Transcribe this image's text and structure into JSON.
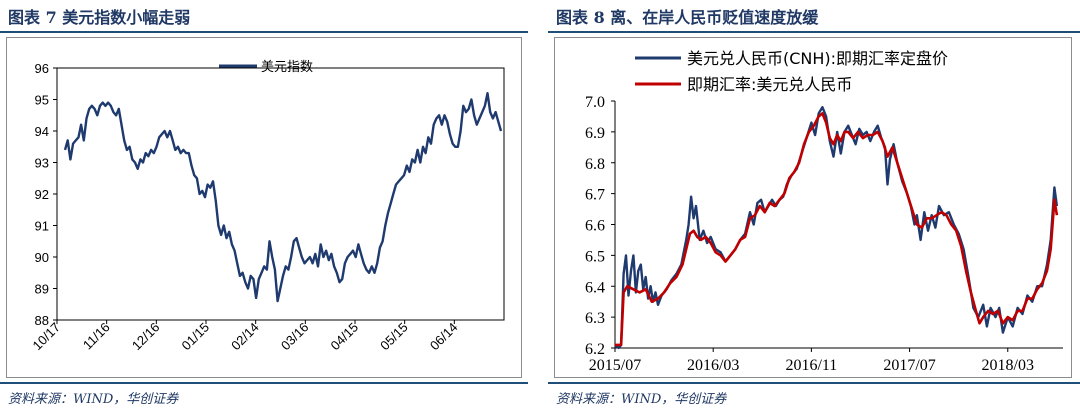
{
  "left": {
    "title": "图表 7   美元指数小幅走弱",
    "source": "资料来源：WIND，华创证券",
    "chart_data": {
      "type": "line",
      "ylim": [
        88,
        96
      ],
      "yticks": [
        96,
        95,
        94,
        93,
        92,
        91,
        90,
        89,
        88
      ],
      "xticks": [
        "10/17",
        "11/16",
        "12/16",
        "01/15",
        "02/14",
        "03/16",
        "04/15",
        "05/15",
        "06/14"
      ],
      "series": [
        {
          "name": "美元指数",
          "color": "#1f3a6e",
          "values": [
            93.4,
            93.7,
            93.1,
            93.6,
            93.7,
            93.8,
            94.2,
            93.7,
            94.4,
            94.7,
            94.8,
            94.7,
            94.5,
            94.8,
            94.9,
            94.8,
            94.9,
            94.8,
            94.6,
            94.5,
            94.7,
            94.2,
            93.7,
            93.4,
            93.5,
            93.1,
            93.0,
            92.8,
            93.1,
            93.0,
            93.3,
            93.2,
            93.4,
            93.3,
            93.5,
            93.8,
            93.9,
            94.0,
            93.8,
            94.0,
            93.7,
            93.4,
            93.5,
            93.3,
            93.4,
            93.3,
            93.3,
            92.9,
            92.6,
            92.5,
            92.0,
            92.1,
            91.9,
            92.3,
            92.2,
            92.4,
            91.8,
            91.0,
            90.7,
            91.0,
            90.6,
            90.8,
            90.4,
            90.2,
            89.8,
            89.4,
            89.5,
            89.2,
            89.0,
            89.4,
            89.3,
            88.7,
            89.3,
            89.5,
            89.7,
            89.6,
            90.5,
            90.0,
            89.6,
            88.6,
            89.0,
            89.4,
            89.7,
            89.6,
            90.0,
            90.5,
            90.6,
            90.3,
            90.0,
            89.8,
            89.9,
            90.0,
            89.8,
            90.1,
            89.7,
            90.4,
            90.0,
            90.2,
            89.9,
            90.1,
            89.7,
            89.5,
            89.2,
            89.3,
            89.8,
            90.0,
            90.1,
            90.2,
            90.0,
            90.4,
            90.1,
            89.8,
            89.6,
            89.5,
            89.7,
            89.5,
            89.8,
            90.3,
            90.5,
            91.0,
            91.4,
            91.7,
            92.0,
            92.3,
            92.4,
            92.5,
            92.6,
            92.9,
            92.7,
            93.1,
            93.0,
            93.4,
            93.0,
            93.5,
            93.3,
            93.8,
            93.6,
            94.2,
            94.4,
            94.5,
            94.2,
            94.5,
            94.3,
            93.9,
            93.6,
            93.5,
            93.5,
            94.0,
            94.8,
            94.6,
            94.7,
            95.0,
            94.5,
            94.2,
            94.4,
            94.6,
            94.8,
            95.2,
            94.6,
            94.4,
            94.6,
            94.3,
            94.0
          ]
        }
      ]
    }
  },
  "right": {
    "title": "图表 8   离、在岸人民币贬值速度放缓",
    "source": "资料来源：WIND，华创证券",
    "chart_data": {
      "type": "line",
      "ylim": [
        6.2,
        7.0
      ],
      "yticks": [
        7.0,
        6.9,
        6.8,
        6.7,
        6.6,
        6.5,
        6.4,
        6.3,
        6.2
      ],
      "xticks": [
        "2015/07",
        "2016/03",
        "2016/11",
        "2017/07",
        "2018/03"
      ],
      "x_months": [
        0,
        8,
        16,
        24,
        32
      ],
      "x_range_months": [
        0,
        36.5
      ],
      "series": [
        {
          "name": "美元兑人民币(CNH):即期汇率定盘价",
          "color": "#1f3a6e",
          "points": [
            [
              0,
              6.21
            ],
            [
              0.3,
              6.2
            ],
            [
              0.5,
              6.21
            ],
            [
              0.7,
              6.44
            ],
            [
              0.9,
              6.5
            ],
            [
              1.1,
              6.37
            ],
            [
              1.3,
              6.45
            ],
            [
              1.5,
              6.5
            ],
            [
              1.7,
              6.38
            ],
            [
              1.9,
              6.45
            ],
            [
              2.1,
              6.47
            ],
            [
              2.3,
              6.39
            ],
            [
              2.5,
              6.43
            ],
            [
              2.7,
              6.36
            ],
            [
              2.9,
              6.4
            ],
            [
              3.1,
              6.35
            ],
            [
              3.3,
              6.38
            ],
            [
              3.5,
              6.34
            ],
            [
              3.8,
              6.37
            ],
            [
              4.2,
              6.39
            ],
            [
              4.6,
              6.42
            ],
            [
              5.0,
              6.44
            ],
            [
              5.4,
              6.47
            ],
            [
              5.8,
              6.55
            ],
            [
              6.0,
              6.6
            ],
            [
              6.2,
              6.69
            ],
            [
              6.4,
              6.62
            ],
            [
              6.6,
              6.66
            ],
            [
              6.9,
              6.55
            ],
            [
              7.2,
              6.58
            ],
            [
              7.5,
              6.54
            ],
            [
              7.8,
              6.56
            ],
            [
              8.2,
              6.52
            ],
            [
              8.6,
              6.51
            ],
            [
              9.0,
              6.48
            ],
            [
              9.4,
              6.5
            ],
            [
              9.8,
              6.52
            ],
            [
              10.2,
              6.55
            ],
            [
              10.6,
              6.57
            ],
            [
              11.0,
              6.64
            ],
            [
              11.3,
              6.6
            ],
            [
              11.6,
              6.67
            ],
            [
              11.9,
              6.68
            ],
            [
              12.2,
              6.64
            ],
            [
              12.5,
              6.66
            ],
            [
              12.8,
              6.68
            ],
            [
              13.1,
              6.66
            ],
            [
              13.4,
              6.68
            ],
            [
              13.7,
              6.69
            ],
            [
              14.0,
              6.73
            ],
            [
              14.4,
              6.76
            ],
            [
              14.8,
              6.78
            ],
            [
              15.2,
              6.83
            ],
            [
              15.6,
              6.88
            ],
            [
              16.0,
              6.93
            ],
            [
              16.3,
              6.89
            ],
            [
              16.6,
              6.96
            ],
            [
              16.9,
              6.98
            ],
            [
              17.2,
              6.95
            ],
            [
              17.5,
              6.87
            ],
            [
              17.8,
              6.82
            ],
            [
              18.1,
              6.9
            ],
            [
              18.4,
              6.83
            ],
            [
              18.7,
              6.9
            ],
            [
              19.0,
              6.92
            ],
            [
              19.3,
              6.89
            ],
            [
              19.6,
              6.86
            ],
            [
              19.9,
              6.91
            ],
            [
              20.2,
              6.89
            ],
            [
              20.5,
              6.9
            ],
            [
              20.8,
              6.87
            ],
            [
              21.1,
              6.9
            ],
            [
              21.4,
              6.92
            ],
            [
              21.7,
              6.88
            ],
            [
              22.0,
              6.85
            ],
            [
              22.2,
              6.73
            ],
            [
              22.4,
              6.81
            ],
            [
              22.7,
              6.86
            ],
            [
              23.0,
              6.8
            ],
            [
              23.4,
              6.74
            ],
            [
              23.8,
              6.7
            ],
            [
              24.1,
              6.66
            ],
            [
              24.4,
              6.6
            ],
            [
              24.6,
              6.63
            ],
            [
              24.9,
              6.55
            ],
            [
              25.2,
              6.64
            ],
            [
              25.5,
              6.58
            ],
            [
              25.8,
              6.63
            ],
            [
              26.1,
              6.59
            ],
            [
              26.4,
              6.66
            ],
            [
              26.8,
              6.63
            ],
            [
              27.2,
              6.64
            ],
            [
              27.6,
              6.6
            ],
            [
              28.0,
              6.57
            ],
            [
              28.4,
              6.52
            ],
            [
              28.8,
              6.43
            ],
            [
              29.2,
              6.33
            ],
            [
              29.6,
              6.3
            ],
            [
              30.0,
              6.34
            ],
            [
              30.3,
              6.27
            ],
            [
              30.6,
              6.33
            ],
            [
              31.0,
              6.3
            ],
            [
              31.3,
              6.33
            ],
            [
              31.6,
              6.25
            ],
            [
              32.0,
              6.3
            ],
            [
              32.4,
              6.27
            ],
            [
              32.8,
              6.33
            ],
            [
              33.2,
              6.31
            ],
            [
              33.6,
              6.37
            ],
            [
              34.0,
              6.35
            ],
            [
              34.4,
              6.4
            ],
            [
              34.8,
              6.4
            ],
            [
              35.2,
              6.47
            ],
            [
              35.5,
              6.55
            ],
            [
              35.8,
              6.72
            ],
            [
              36.0,
              6.66
            ]
          ]
        },
        {
          "name": "即期汇率:美元兑人民币",
          "color": "#c00000",
          "points": [
            [
              0,
              6.21
            ],
            [
              0.5,
              6.21
            ],
            [
              0.7,
              6.38
            ],
            [
              1.0,
              6.4
            ],
            [
              1.5,
              6.39
            ],
            [
              2.0,
              6.38
            ],
            [
              2.5,
              6.39
            ],
            [
              3.0,
              6.35
            ],
            [
              3.5,
              6.36
            ],
            [
              4.0,
              6.38
            ],
            [
              4.5,
              6.41
            ],
            [
              5.0,
              6.43
            ],
            [
              5.5,
              6.47
            ],
            [
              5.8,
              6.52
            ],
            [
              6.1,
              6.57
            ],
            [
              6.4,
              6.58
            ],
            [
              6.7,
              6.56
            ],
            [
              7.0,
              6.55
            ],
            [
              7.4,
              6.56
            ],
            [
              7.8,
              6.54
            ],
            [
              8.2,
              6.51
            ],
            [
              8.6,
              6.5
            ],
            [
              9.0,
              6.48
            ],
            [
              9.4,
              6.5
            ],
            [
              9.8,
              6.52
            ],
            [
              10.2,
              6.55
            ],
            [
              10.6,
              6.56
            ],
            [
              11.0,
              6.62
            ],
            [
              11.4,
              6.63
            ],
            [
              11.8,
              6.66
            ],
            [
              12.2,
              6.64
            ],
            [
              12.6,
              6.67
            ],
            [
              13.0,
              6.66
            ],
            [
              13.4,
              6.68
            ],
            [
              13.8,
              6.7
            ],
            [
              14.2,
              6.75
            ],
            [
              14.6,
              6.77
            ],
            [
              15.0,
              6.8
            ],
            [
              15.4,
              6.86
            ],
            [
              15.8,
              6.9
            ],
            [
              16.2,
              6.92
            ],
            [
              16.6,
              6.95
            ],
            [
              16.9,
              6.96
            ],
            [
              17.2,
              6.93
            ],
            [
              17.5,
              6.88
            ],
            [
              17.8,
              6.86
            ],
            [
              18.1,
              6.89
            ],
            [
              18.4,
              6.87
            ],
            [
              18.7,
              6.9
            ],
            [
              19.0,
              6.9
            ],
            [
              19.4,
              6.88
            ],
            [
              19.8,
              6.9
            ],
            [
              20.2,
              6.88
            ],
            [
              20.6,
              6.89
            ],
            [
              21.0,
              6.89
            ],
            [
              21.4,
              6.9
            ],
            [
              21.8,
              6.87
            ],
            [
              22.2,
              6.82
            ],
            [
              22.6,
              6.85
            ],
            [
              23.0,
              6.8
            ],
            [
              23.4,
              6.75
            ],
            [
              23.8,
              6.7
            ],
            [
              24.2,
              6.65
            ],
            [
              24.6,
              6.6
            ],
            [
              25.0,
              6.59
            ],
            [
              25.4,
              6.62
            ],
            [
              25.8,
              6.62
            ],
            [
              26.2,
              6.63
            ],
            [
              26.6,
              6.64
            ],
            [
              27.0,
              6.63
            ],
            [
              27.4,
              6.6
            ],
            [
              27.8,
              6.58
            ],
            [
              28.2,
              6.53
            ],
            [
              28.6,
              6.45
            ],
            [
              29.0,
              6.38
            ],
            [
              29.4,
              6.32
            ],
            [
              29.7,
              6.28
            ],
            [
              30.0,
              6.3
            ],
            [
              30.4,
              6.32
            ],
            [
              30.8,
              6.31
            ],
            [
              31.2,
              6.32
            ],
            [
              31.6,
              6.28
            ],
            [
              32.0,
              6.3
            ],
            [
              32.4,
              6.29
            ],
            [
              32.8,
              6.32
            ],
            [
              33.2,
              6.32
            ],
            [
              33.6,
              6.36
            ],
            [
              34.0,
              6.36
            ],
            [
              34.4,
              6.39
            ],
            [
              34.8,
              6.41
            ],
            [
              35.2,
              6.45
            ],
            [
              35.5,
              6.52
            ],
            [
              35.8,
              6.68
            ],
            [
              36.0,
              6.63
            ]
          ]
        }
      ]
    }
  }
}
